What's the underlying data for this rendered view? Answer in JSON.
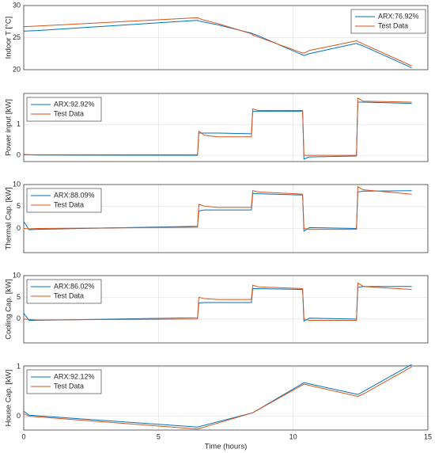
{
  "chart_data": [
    {
      "type": "line",
      "ylabel": "Indoor T [°C]",
      "legend": "upper right",
      "grid": true,
      "x": [
        0,
        0.2,
        0.5,
        6.45,
        6.5,
        6.7,
        7.2,
        8.45,
        8.5,
        8.7,
        10.35,
        10.4,
        10.6,
        12.35,
        12.4,
        12.6,
        14.4
      ],
      "xlim": [
        0,
        15
      ],
      "xticks": [
        0,
        5,
        10,
        15
      ],
      "ylim": [
        20,
        30
      ],
      "yticks": [
        20,
        25,
        30
      ],
      "series": [
        {
          "name": "ARX:76.92%",
          "color": "#0072bd",
          "values": [
            26.0,
            26.05,
            26.1,
            27.7,
            27.6,
            27.4,
            27.0,
            25.7,
            25.6,
            25.3,
            22.3,
            22.2,
            22.5,
            24.1,
            24.0,
            23.7,
            20.3
          ]
        },
        {
          "name": "Test Data",
          "color": "#d95319",
          "values": [
            26.7,
            26.75,
            26.8,
            28.1,
            28.0,
            27.7,
            27.2,
            25.6,
            25.4,
            25.1,
            22.6,
            22.6,
            23.0,
            24.5,
            24.4,
            24.0,
            20.6
          ]
        }
      ]
    },
    {
      "type": "line",
      "ylabel": "Power input [kW]",
      "legend": "upper left",
      "grid": true,
      "x": [
        0,
        0.2,
        0.5,
        6.45,
        6.5,
        6.7,
        7.2,
        8.45,
        8.5,
        8.7,
        10.35,
        10.4,
        10.6,
        12.35,
        12.4,
        12.6,
        14.4
      ],
      "xlim": [
        0,
        15
      ],
      "xticks": [
        0,
        5,
        10,
        15
      ],
      "ylim": [
        -0.2,
        2
      ],
      "yticks": [
        0,
        1
      ],
      "series": [
        {
          "name": "ARX:92.92%",
          "color": "#0072bd",
          "values": [
            0.02,
            0.02,
            0.01,
            0.0,
            0.72,
            0.72,
            0.72,
            0.7,
            1.42,
            1.42,
            1.42,
            -0.12,
            -0.05,
            -0.02,
            1.72,
            1.72,
            1.68
          ]
        },
        {
          "name": "Test Data",
          "color": "#d95319",
          "values": [
            0.03,
            0.02,
            0.02,
            0.02,
            0.78,
            0.65,
            0.6,
            0.6,
            1.5,
            1.45,
            1.45,
            0.0,
            0.0,
            0.0,
            1.85,
            1.75,
            1.72
          ]
        }
      ]
    },
    {
      "type": "line",
      "ylabel": "Thermal Cap. [kW]",
      "legend": "upper left",
      "grid": true,
      "x": [
        0,
        0.2,
        0.5,
        6.45,
        6.5,
        6.7,
        7.2,
        8.45,
        8.5,
        8.7,
        10.35,
        10.4,
        10.6,
        12.35,
        12.4,
        12.6,
        14.4
      ],
      "xlim": [
        0,
        15
      ],
      "xticks": [
        0,
        5,
        10,
        15
      ],
      "ylim": [
        -5.5,
        10
      ],
      "yticks": [
        0,
        5,
        10
      ],
      "series": [
        {
          "name": "ARX:88.09%",
          "color": "#0072bd",
          "values": [
            1.6,
            -0.3,
            -0.2,
            0.5,
            4.0,
            4.2,
            4.2,
            4.2,
            8.0,
            7.9,
            7.6,
            -0.6,
            0.2,
            0.0,
            8.3,
            8.5,
            8.6
          ]
        },
        {
          "name": "Test Data",
          "color": "#d95319",
          "values": [
            0.0,
            -0.1,
            0.0,
            0.3,
            5.5,
            5.1,
            4.8,
            4.8,
            8.6,
            8.3,
            7.8,
            0.0,
            -0.2,
            -0.2,
            9.5,
            8.8,
            7.8
          ]
        }
      ]
    },
    {
      "type": "line",
      "ylabel": "Cooling Cap. [kW]",
      "legend": "upper left",
      "grid": true,
      "x": [
        0,
        0.2,
        0.5,
        6.45,
        6.5,
        6.7,
        7.2,
        8.45,
        8.5,
        8.7,
        10.35,
        10.4,
        10.6,
        12.35,
        12.4,
        12.6,
        14.4
      ],
      "xlim": [
        0,
        15
      ],
      "xticks": [
        0,
        5,
        10,
        15
      ],
      "ylim": [
        -5.5,
        10
      ],
      "yticks": [
        0,
        5,
        10
      ],
      "series": [
        {
          "name": "ARX:86.02%",
          "color": "#0072bd",
          "values": [
            1.3,
            -0.3,
            -0.3,
            0.3,
            3.7,
            3.8,
            3.8,
            3.8,
            7.0,
            7.0,
            6.8,
            -0.5,
            0.2,
            0.0,
            7.3,
            7.5,
            7.5
          ]
        },
        {
          "name": "Test Data",
          "color": "#d95319",
          "values": [
            0.0,
            -0.1,
            -0.2,
            0.0,
            5.0,
            4.7,
            4.5,
            4.5,
            7.8,
            7.4,
            7.0,
            0.0,
            -0.3,
            -0.3,
            8.3,
            7.5,
            6.8
          ]
        }
      ]
    },
    {
      "type": "line",
      "ylabel": "House Cap. [kW]",
      "xlabel": "Time (hours)",
      "legend": "upper left",
      "grid": true,
      "x": [
        0,
        0.2,
        6.45,
        8.5,
        10.4,
        12.4,
        12.6,
        14.4
      ],
      "xlim": [
        0,
        15
      ],
      "xticks": [
        0,
        5,
        10,
        15
      ],
      "ylim": [
        -0.28,
        1.02
      ],
      "yticks": [
        0,
        1
      ],
      "series": [
        {
          "name": "ARX:92.12%",
          "color": "#0072bd",
          "values": [
            0.1,
            0.02,
            -0.22,
            0.07,
            0.68,
            0.44,
            0.5,
            1.05
          ]
        },
        {
          "name": "Test Data",
          "color": "#d95319",
          "values": [
            0.05,
            0.0,
            -0.26,
            0.07,
            0.65,
            0.4,
            0.45,
            1.0
          ]
        }
      ]
    }
  ]
}
